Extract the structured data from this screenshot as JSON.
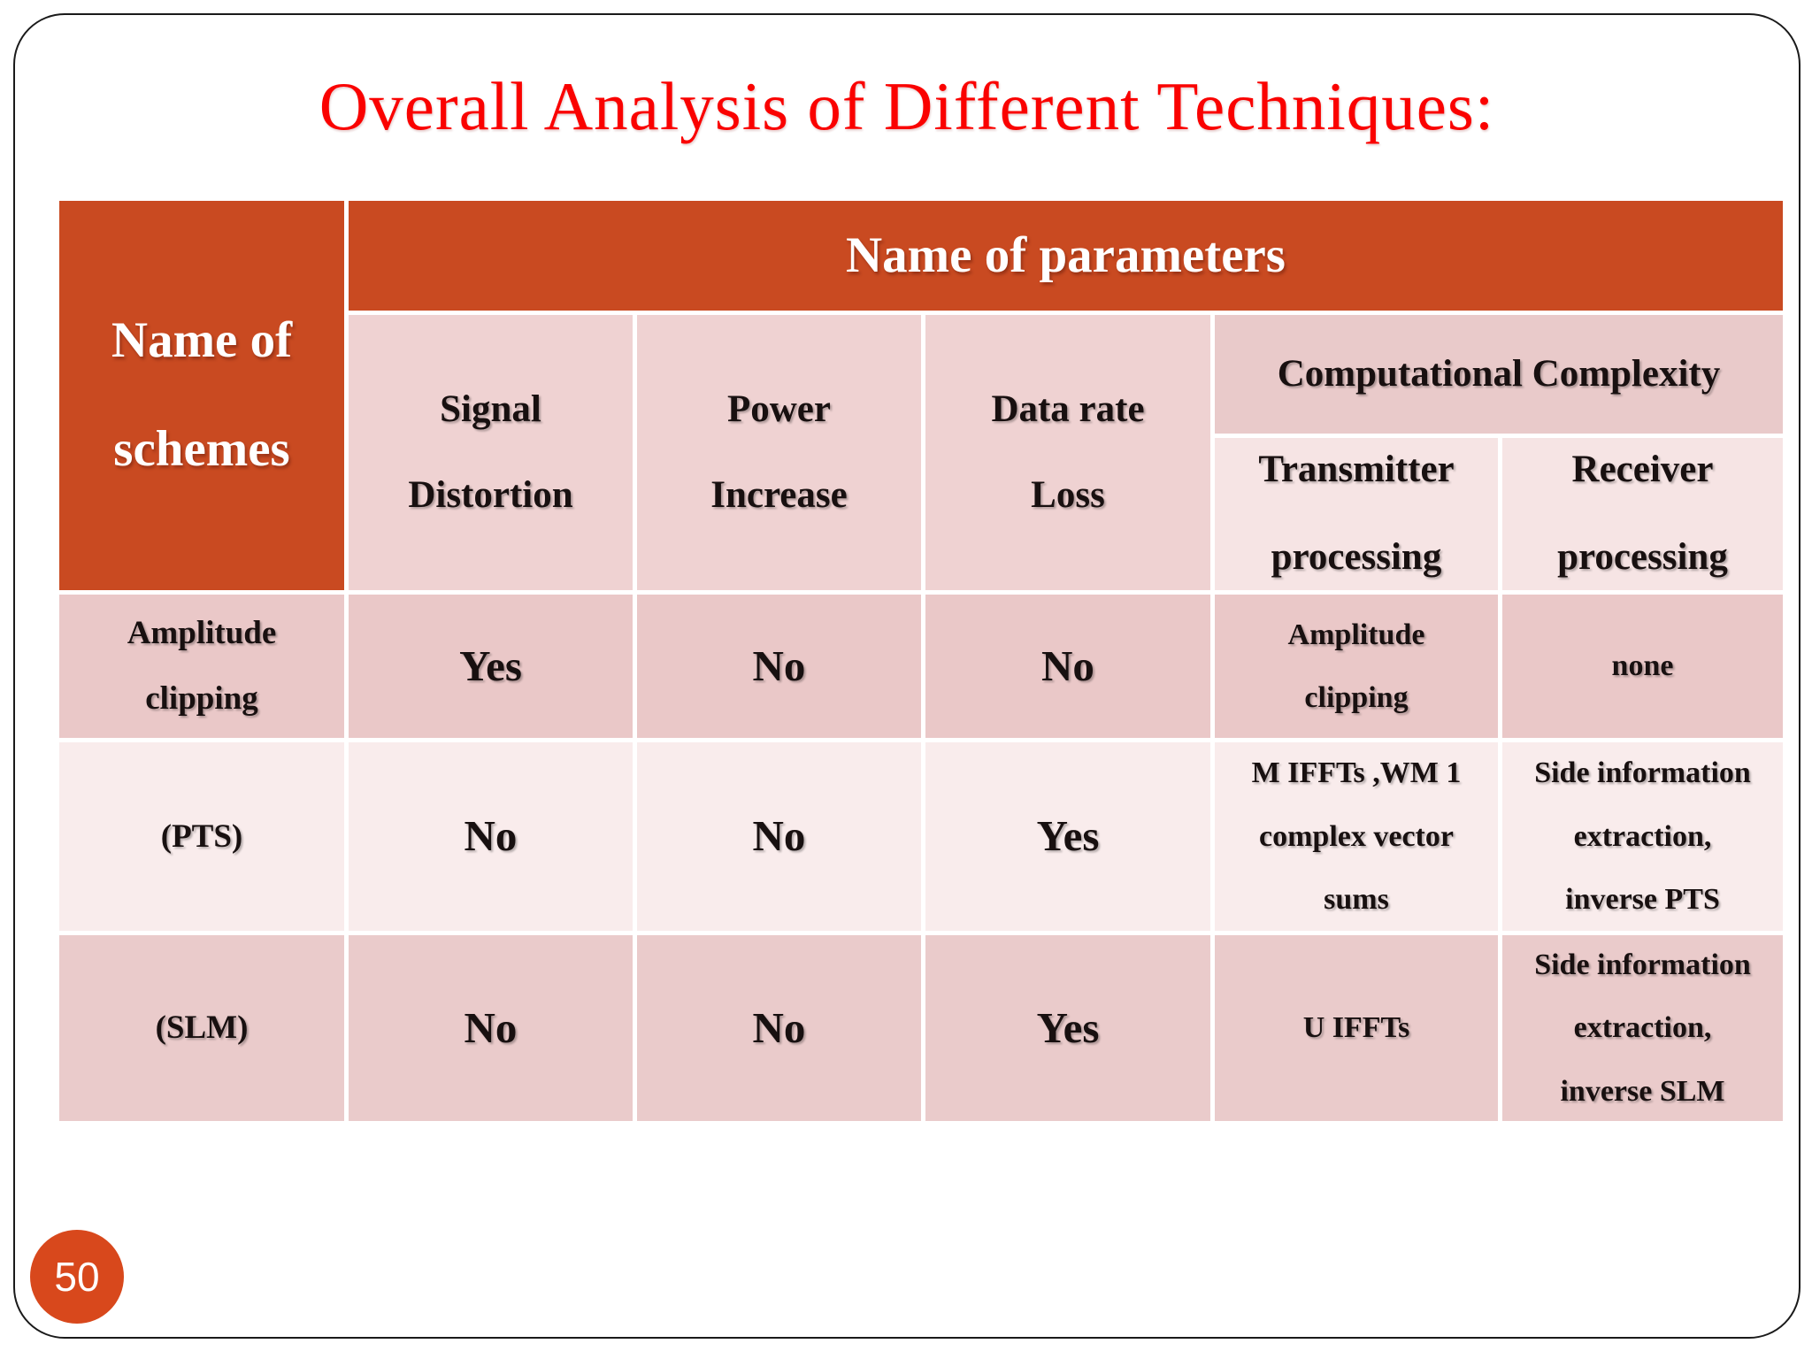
{
  "slide": {
    "title": "Overall Analysis of Different Techniques:",
    "page_number": "50",
    "colors": {
      "title_red": "#FA0200",
      "header_orange": "#C94A21",
      "badge_orange": "#D8481C",
      "column_header_pink": "#EFD2D2",
      "complexity_header_pink": "#E9CACA",
      "sub_header_pink": "#F6E4E4",
      "row_amplitude_bg": "#EAC8C8",
      "row_pts_bg": "#F9ECEC",
      "row_slm_bg": "#EACBCB"
    }
  },
  "table": {
    "corner_header": "Name of\nschemes",
    "top_header": "Name of parameters",
    "col_header_signal": "Signal\nDistortion",
    "col_header_power": "Power\nIncrease",
    "col_header_datarate": "Data rate\nLoss",
    "complexity_header": "Computational Complexity",
    "sub_header_transmitter": "Transmitter\nprocessing",
    "sub_header_receiver": "Receiver\nprocessing",
    "rows": [
      {
        "scheme": "Amplitude\nclipping",
        "signal_distortion": "Yes",
        "power_increase": "No",
        "data_rate_loss": "No",
        "transmitter_processing": "Amplitude\nclipping",
        "receiver_processing": "none"
      },
      {
        "scheme": "(PTS)",
        "signal_distortion": "No",
        "power_increase": "No",
        "data_rate_loss": "Yes",
        "transmitter_processing": "M IFFTs ,WM 1\ncomplex vector\nsums",
        "receiver_processing": "Side information\nextraction,\ninverse PTS"
      },
      {
        "scheme": "(SLM)",
        "signal_distortion": "No",
        "power_increase": "No",
        "data_rate_loss": "Yes",
        "transmitter_processing": "U IFFTs",
        "receiver_processing": "Side information\nextraction,\ninverse SLM"
      }
    ]
  }
}
